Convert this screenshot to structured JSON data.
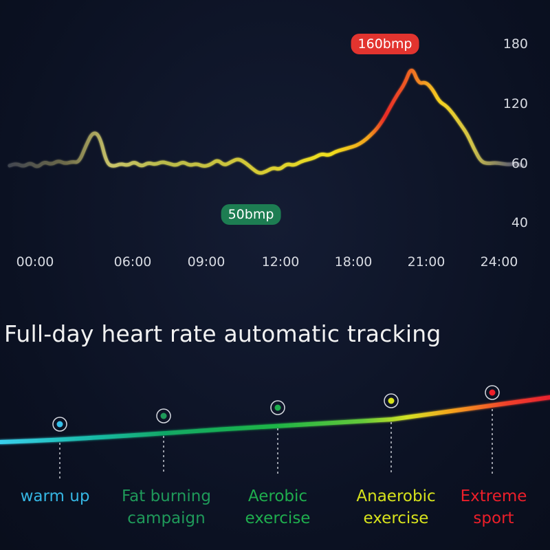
{
  "chart_data": {
    "type": "line",
    "y_ticks": [
      "180",
      "120",
      "60",
      "40"
    ],
    "x_ticks": [
      "00:00",
      "06:00",
      "09:00",
      "12:00",
      "18:00",
      "21:00",
      "24:00"
    ],
    "max_label": "160bmp",
    "min_label": "50bmp",
    "series": [
      {
        "values": [
          58,
          60,
          57,
          61,
          56,
          62,
          59,
          63,
          60,
          62,
          61,
          78,
          92,
          88,
          60,
          57,
          60,
          58,
          62,
          57,
          61,
          59,
          62,
          60,
          58,
          62,
          58,
          60,
          57,
          59,
          64,
          58,
          62,
          65,
          61,
          55,
          50,
          52,
          56,
          54,
          60,
          58,
          62,
          64,
          66,
          70,
          68,
          72,
          74,
          76,
          78,
          82,
          88,
          95,
          105,
          118,
          130,
          140,
          158,
          140,
          142,
          135,
          122,
          118,
          110,
          100,
          90,
          75,
          62,
          60,
          61,
          60,
          59,
          60,
          58
        ]
      }
    ]
  },
  "headline": "Full-day heart rate automatic tracking",
  "zones": [
    {
      "lines": [
        "warm up"
      ],
      "color": "#35b6e3"
    },
    {
      "lines": [
        "Fat burning",
        "campaign"
      ],
      "color": "#1f9a5a"
    },
    {
      "lines": [
        "Aerobic",
        "exercise"
      ],
      "color": "#1fae4e"
    },
    {
      "lines": [
        "Anaerobic",
        "exercise"
      ],
      "color": "#d7e21c"
    },
    {
      "lines": [
        "Extreme",
        "sport"
      ],
      "color": "#ec1f2a"
    }
  ]
}
